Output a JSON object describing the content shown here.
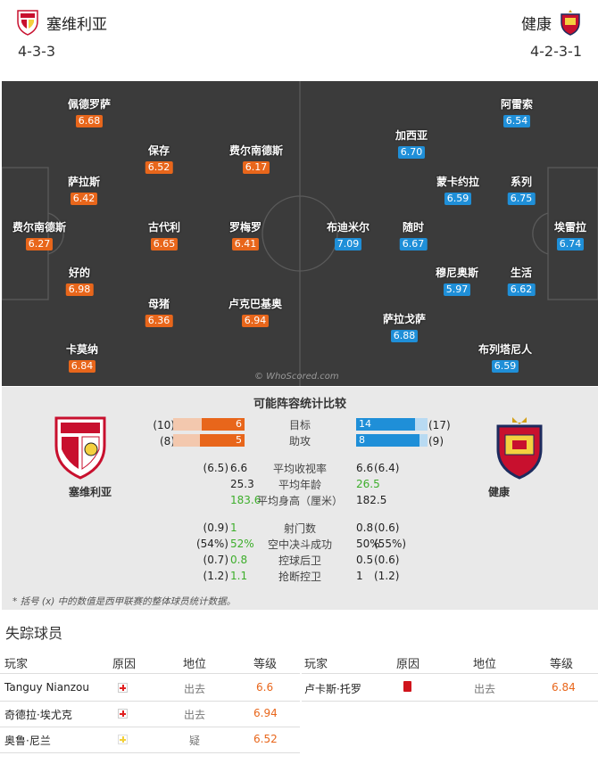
{
  "header": {
    "home": {
      "name": "塞维利亚",
      "formation": "4-3-3"
    },
    "away": {
      "name": "健康",
      "formation": "4-2-3-1"
    }
  },
  "pitch": {
    "watermark": "© WhoScored.com",
    "home_players": [
      {
        "id": "p1",
        "name": "佩德罗萨",
        "rating": "6.68"
      },
      {
        "id": "p2",
        "name": "萨拉斯",
        "rating": "6.42"
      },
      {
        "id": "p3",
        "name": "费尔南德斯",
        "rating": "6.27"
      },
      {
        "id": "p4",
        "name": "好的",
        "rating": "6.98"
      },
      {
        "id": "p5",
        "name": "卡莫纳",
        "rating": "6.84"
      },
      {
        "id": "p6",
        "name": "保存",
        "rating": "6.52"
      },
      {
        "id": "p7",
        "name": "古代利",
        "rating": "6.65"
      },
      {
        "id": "p8",
        "name": "母猪",
        "rating": "6.36"
      },
      {
        "id": "p9",
        "name": "费尔南德斯",
        "rating": "6.17"
      },
      {
        "id": "p10",
        "name": "罗梅罗",
        "rating": "6.41"
      },
      {
        "id": "p11",
        "name": "卢克巴基奥",
        "rating": "6.94"
      }
    ],
    "away_players": [
      {
        "id": "a1",
        "name": "阿雷索",
        "rating": "6.54"
      },
      {
        "id": "a2",
        "name": "系列",
        "rating": "6.75"
      },
      {
        "id": "a3",
        "name": "埃雷拉",
        "rating": "6.74"
      },
      {
        "id": "a4",
        "name": "生活",
        "rating": "6.62"
      },
      {
        "id": "a5",
        "name": "布列塔尼人",
        "rating": "6.59"
      },
      {
        "id": "a6",
        "name": "加西亚",
        "rating": "6.70"
      },
      {
        "id": "a7",
        "name": "蒙卡约拉",
        "rating": "6.59"
      },
      {
        "id": "a8",
        "name": "穆尼奥斯",
        "rating": "5.97"
      },
      {
        "id": "a9",
        "name": "随时",
        "rating": "6.67"
      },
      {
        "id": "a10",
        "name": "布迪米尔",
        "rating": "7.09"
      },
      {
        "id": "a11",
        "name": "萨拉戈萨",
        "rating": "6.88"
      }
    ]
  },
  "comparison": {
    "title": "可能阵容统计比较",
    "home_name": "塞维利亚",
    "away_name": "健康",
    "bars": [
      {
        "label": "目标",
        "home": "6",
        "home_avg": "(10)",
        "away": "14",
        "away_avg": "(17)",
        "home_frac": 0.6,
        "away_frac": 0.82
      },
      {
        "label": "助攻",
        "home": "5",
        "home_avg": "(8)",
        "away": "8",
        "away_avg": "(9)",
        "home_frac": 0.62,
        "away_frac": 0.89
      }
    ],
    "stats1": [
      {
        "label": "平均收视率",
        "home_avg": "(6.5)",
        "home": "6.6",
        "away": "6.6",
        "away_avg": "(6.4)",
        "home_green": false,
        "away_green": false
      },
      {
        "label": "平均年龄",
        "home_avg": "",
        "home": "25.3",
        "away": "26.5",
        "away_avg": "",
        "home_green": false,
        "away_green": true
      },
      {
        "label": "平均身高（厘米）",
        "home_avg": "",
        "home": "183.6",
        "away": "182.5",
        "away_avg": "",
        "home_green": true,
        "away_green": false
      }
    ],
    "stats2": [
      {
        "label": "射门数",
        "home_avg": "(0.9)",
        "home": "1",
        "away": "0.8",
        "away_avg": "(0.6)",
        "home_green": true,
        "away_green": false
      },
      {
        "label": "空中决斗成功",
        "home_avg": "(54%)",
        "home": "52%",
        "away": "50%",
        "away_avg": "(55%)",
        "home_green": true,
        "away_green": false
      },
      {
        "label": "控球后卫",
        "home_avg": "(0.7)",
        "home": "0.8",
        "away": "0.5",
        "away_avg": "(0.6)",
        "home_green": true,
        "away_green": false
      },
      {
        "label": "抢断控卫",
        "home_avg": "(1.2)",
        "home": "1.1",
        "away": "1",
        "away_avg": "(1.2)",
        "home_green": true,
        "away_green": false
      }
    ],
    "note": "* 括号 (x) 中的数值是西甲联赛的整体球员统计数据。"
  },
  "missing": {
    "title": "失踪球员",
    "headers": {
      "player": "玩家",
      "reason": "原因",
      "position": "地位",
      "grade": "等级"
    },
    "home": [
      {
        "name": "Tanguy Nianzou",
        "reason": "injury",
        "position": "出去",
        "grade": "6.6"
      },
      {
        "name": "奇德拉·埃尤克",
        "reason": "injury",
        "position": "出去",
        "grade": "6.94"
      },
      {
        "name": "奥鲁·尼兰",
        "reason": "doubt",
        "position": "疑",
        "grade": "6.52"
      }
    ],
    "away": [
      {
        "name": "卢卡斯·托罗",
        "reason": "red-card",
        "position": "出去",
        "grade": "6.84"
      }
    ]
  }
}
